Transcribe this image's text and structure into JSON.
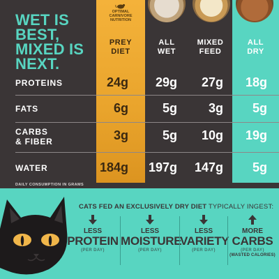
{
  "headline": [
    "WET IS",
    "BEST,",
    "MIXED IS",
    "NEXT."
  ],
  "badge": {
    "line1": "OPTIMAL",
    "line2": "CARNIVORE",
    "line3": "NUTRITION",
    "icon": "mouse-icon"
  },
  "columns": {
    "prey": [
      "PREY",
      "DIET"
    ],
    "wet": [
      "ALL",
      "WET"
    ],
    "mixed": [
      "MIXED",
      "FEED"
    ],
    "dry": [
      "ALL",
      "DRY"
    ]
  },
  "rows": [
    {
      "label": [
        "PROTEINS"
      ],
      "prey": "24g",
      "wet": "29g",
      "mixed": "27g",
      "dry": "18g"
    },
    {
      "label": [
        "FATS"
      ],
      "prey": "6g",
      "wet": "5g",
      "mixed": "3g",
      "dry": "5g"
    },
    {
      "label": [
        "CARBS",
        "& FIBER"
      ],
      "prey": "3g",
      "wet": "5g",
      "mixed": "10g",
      "dry": "19g"
    },
    {
      "label": [
        "WATER"
      ],
      "prey": "184g",
      "wet": "197g",
      "mixed": "147g",
      "dry": "5g"
    }
  ],
  "footnote": "DAILY CONSUMPTION IN GRAMS",
  "subtitle": {
    "bold": "CATS FED AN EXCLUSIVELY DRY DIET",
    "rest": " TYPICALLY INGEST:"
  },
  "facts": [
    {
      "direction": "down",
      "top": "LESS",
      "big": "PROTEIN",
      "small": "(PER DAY)",
      "note": ""
    },
    {
      "direction": "down",
      "top": "LESS",
      "big": "MOISTURE",
      "small": "(PER DAY)",
      "note": ""
    },
    {
      "direction": "down",
      "top": "LESS",
      "big": "VARIETY",
      "small": "(PER DAY)",
      "note": ""
    },
    {
      "direction": "up",
      "top": "MORE",
      "big": "CARBS",
      "small": "(PER DAY)",
      "note": "(WASTED CALORIES)"
    }
  ],
  "colors": {
    "dark": "#3a3536",
    "teal": "#58d5c1",
    "gold": "#f4b23a"
  },
  "icons": [
    "wet-food-bowl-icon",
    "mixed-food-bowl-icon",
    "dry-food-bowl-icon",
    "black-cat-icon",
    "arrow-down-icon",
    "arrow-up-icon"
  ]
}
